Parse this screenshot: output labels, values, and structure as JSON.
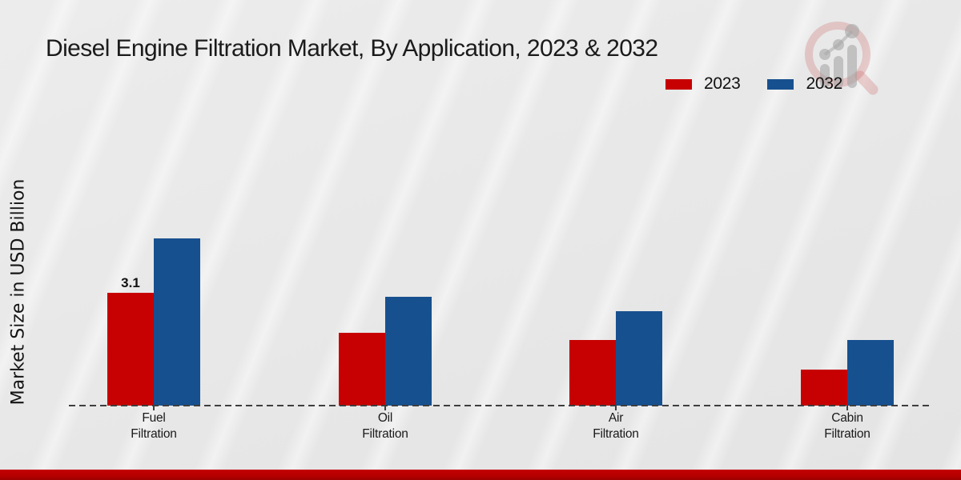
{
  "chart_data": {
    "type": "bar",
    "title": "Diesel Engine Filtration Market, By Application, 2023 & 2032",
    "categories": [
      "Fuel Filtration",
      "Oil Filtration",
      "Air Filtration",
      "Cabin Filtration"
    ],
    "series": [
      {
        "name": "2023",
        "color": "#c70101",
        "values": [
          3.1,
          2.0,
          1.8,
          1.0
        ]
      },
      {
        "name": "2032",
        "color": "#17508f",
        "values": [
          4.6,
          3.0,
          2.6,
          1.8
        ]
      }
    ],
    "ylabel": "Market Size in USD Billion",
    "ylim": [
      0,
      5
    ],
    "grid": false,
    "legend_position": "top-right",
    "baseline_style": "dashed",
    "data_labels": [
      {
        "series_index": 0,
        "category_index": 0,
        "text": "3.1"
      }
    ]
  },
  "branding": {
    "watermark_icon": "magnifier-bar-chart-logo",
    "footer_accent_color": "#b30000"
  }
}
